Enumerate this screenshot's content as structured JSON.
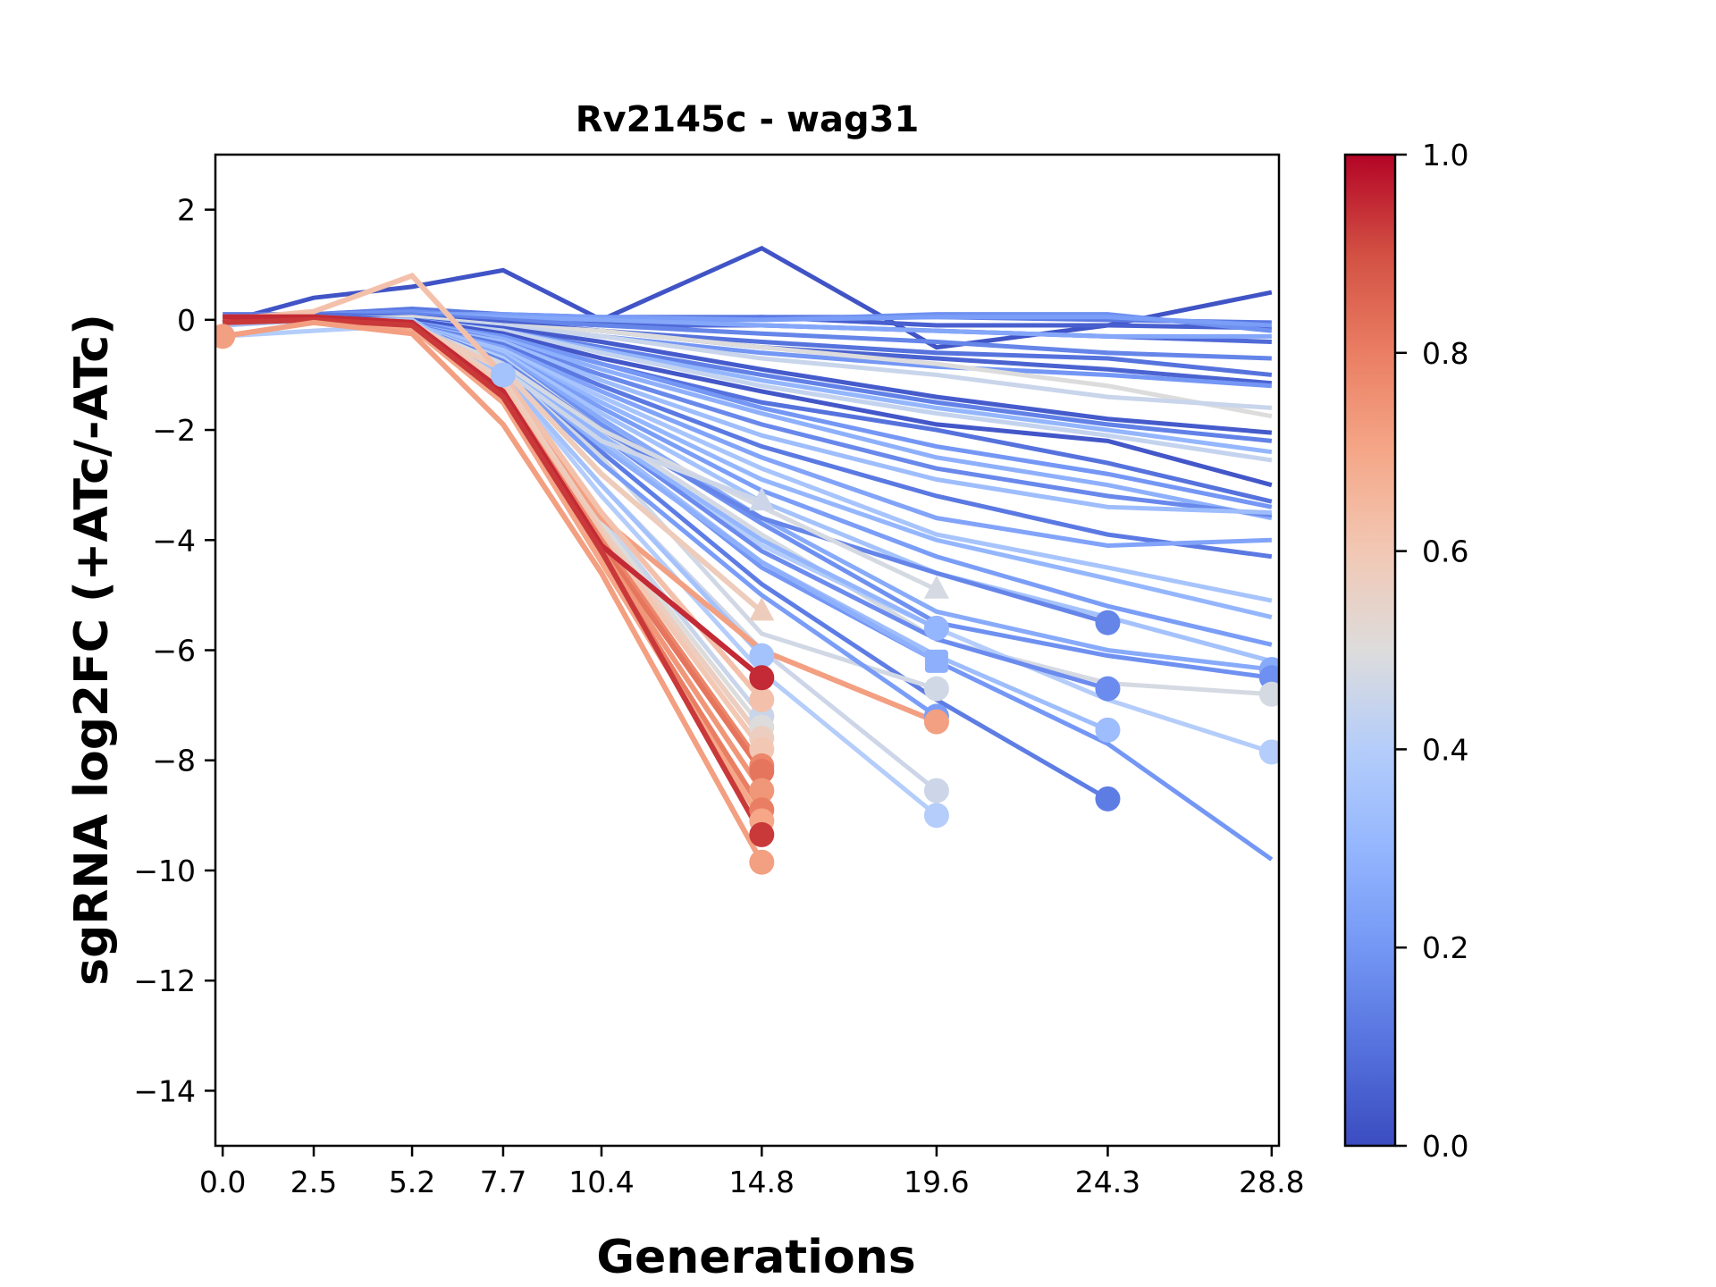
{
  "chart_data": {
    "type": "line",
    "title": "Rv2145c - wag31",
    "xlabel": "Generations",
    "ylabel": "sgRNA log2FC (+ATc/-ATc)",
    "x_ticks": [
      0.0,
      2.5,
      5.2,
      7.7,
      10.4,
      14.8,
      19.6,
      24.3,
      28.8
    ],
    "x_tick_labels": [
      "0.0",
      "2.5",
      "5.2",
      "7.7",
      "10.4",
      "14.8",
      "19.6",
      "24.3",
      "28.8"
    ],
    "y_ticks": [
      2,
      0,
      -2,
      -4,
      -6,
      -8,
      -10,
      -12,
      -14
    ],
    "y_tick_labels": [
      "2",
      "0",
      "−2",
      "−4",
      "−6",
      "−8",
      "−10",
      "−12",
      "−14"
    ],
    "xlim": [
      -0.2,
      29.0
    ],
    "ylim": [
      -15,
      3
    ],
    "grid": false,
    "colormap": "coolwarm",
    "colorbar": {
      "ticks": [
        0.0,
        0.2,
        0.4,
        0.6,
        0.8,
        1.0
      ],
      "tick_labels": [
        "0.0",
        "0.2",
        "0.4",
        "0.6",
        "0.8",
        "1.0"
      ],
      "range": [
        0,
        1
      ],
      "placement": "right"
    },
    "series_note": "Each series is one sgRNA; 'c' is the colormap value; 'y' aligned to x_ticks, null where the series ended; 'end_marker' is drawn at the last point",
    "series": [
      {
        "c": 0.02,
        "y": [
          -0.05,
          0.4,
          0.6,
          0.9,
          0.0,
          1.3,
          -0.5,
          -0.1,
          0.5
        ]
      },
      {
        "c": 0.05,
        "y": [
          0.05,
          0.05,
          0.1,
          0.05,
          -0.05,
          0.05,
          -0.1,
          -0.1,
          -0.15
        ]
      },
      {
        "c": 0.08,
        "y": [
          0.05,
          0.05,
          0.1,
          0.0,
          -0.1,
          -0.1,
          -0.2,
          -0.3,
          -0.4
        ]
      },
      {
        "c": 0.12,
        "y": [
          0.1,
          0.1,
          0.2,
          0.1,
          0.05,
          0.05,
          0.05,
          0.0,
          -0.05
        ]
      },
      {
        "c": 0.18,
        "y": [
          0.05,
          0.1,
          0.15,
          0.05,
          0.0,
          0.0,
          0.1,
          0.1,
          -0.2
        ]
      },
      {
        "c": 0.22,
        "y": [
          0.0,
          0.05,
          0.1,
          0.1,
          0.05,
          0.0,
          0.05,
          0.05,
          -0.1
        ]
      },
      {
        "c": 0.25,
        "y": [
          0.05,
          0.0,
          0.1,
          0.05,
          0.0,
          -0.1,
          -0.2,
          -0.3,
          -0.3
        ]
      },
      {
        "c": 0.15,
        "y": [
          0.0,
          0.05,
          0.1,
          0.0,
          -0.1,
          -0.25,
          -0.4,
          -0.6,
          -0.7
        ]
      },
      {
        "c": 0.1,
        "y": [
          0.05,
          0.1,
          0.05,
          -0.05,
          -0.2,
          -0.4,
          -0.6,
          -0.7,
          -1.0
        ]
      },
      {
        "c": 0.06,
        "y": [
          0.0,
          0.0,
          0.05,
          -0.05,
          -0.2,
          -0.5,
          -0.7,
          -0.9,
          -1.15
        ]
      },
      {
        "c": 0.2,
        "y": [
          0.0,
          0.0,
          0.05,
          -0.1,
          -0.3,
          -0.6,
          -0.85,
          -1.0,
          -1.2
        ]
      },
      {
        "c": 0.5,
        "y": [
          0.0,
          0.0,
          0.05,
          -0.1,
          -0.2,
          -0.5,
          -0.8,
          -1.2,
          -1.75
        ]
      },
      {
        "c": 0.45,
        "y": [
          0.0,
          0.0,
          0.0,
          -0.1,
          -0.3,
          -0.7,
          -1.0,
          -1.4,
          -1.6
        ]
      },
      {
        "c": 0.04,
        "y": [
          0.05,
          0.0,
          0.0,
          -0.15,
          -0.4,
          -0.9,
          -1.4,
          -1.8,
          -2.05
        ]
      },
      {
        "c": 0.14,
        "y": [
          0.0,
          0.0,
          0.0,
          -0.2,
          -0.5,
          -1.0,
          -1.5,
          -1.9,
          -2.2
        ]
      },
      {
        "c": 0.3,
        "y": [
          0.0,
          0.05,
          0.0,
          -0.2,
          -0.55,
          -1.1,
          -1.6,
          -2.0,
          -2.4
        ]
      },
      {
        "c": 0.44,
        "y": [
          0.0,
          0.0,
          -0.05,
          -0.2,
          -0.6,
          -1.2,
          -1.7,
          -2.1,
          -2.55
        ]
      },
      {
        "c": 0.03,
        "y": [
          0.0,
          0.05,
          0.0,
          -0.25,
          -0.7,
          -1.3,
          -1.9,
          -2.2,
          -3.0
        ]
      },
      {
        "c": 0.1,
        "y": [
          0.0,
          0.0,
          -0.05,
          -0.3,
          -0.8,
          -1.5,
          -2.0,
          -2.6,
          -3.3
        ]
      },
      {
        "c": 0.2,
        "y": [
          0.0,
          0.0,
          -0.05,
          -0.3,
          -0.8,
          -1.6,
          -2.3,
          -2.8,
          -3.4
        ]
      },
      {
        "c": 0.28,
        "y": [
          0.0,
          0.0,
          -0.05,
          -0.35,
          -0.9,
          -1.7,
          -2.5,
          -3.0,
          -3.6
        ]
      },
      {
        "c": 0.16,
        "y": [
          0.0,
          0.05,
          -0.05,
          -0.4,
          -1.0,
          -1.9,
          -2.7,
          -3.2,
          -3.55
        ]
      },
      {
        "c": 0.33,
        "y": [
          0.0,
          0.0,
          -0.1,
          -0.4,
          -1.1,
          -2.1,
          -2.9,
          -3.4,
          -3.5
        ]
      },
      {
        "c": 0.12,
        "y": [
          0.0,
          0.0,
          -0.1,
          -0.45,
          -1.2,
          -2.3,
          -3.2,
          -3.9,
          -4.3
        ]
      },
      {
        "c": 0.24,
        "y": [
          0.0,
          -0.05,
          -0.1,
          -0.5,
          -1.3,
          -2.5,
          -3.6,
          -4.1,
          -4.0
        ]
      },
      {
        "c": 0.36,
        "y": [
          0.0,
          0.0,
          -0.1,
          -0.55,
          -1.4,
          -2.7,
          -3.9,
          -4.5,
          -5.1
        ]
      },
      {
        "c": 0.3,
        "y": [
          0.0,
          0.0,
          -0.1,
          -0.6,
          -1.5,
          -2.9,
          -4.0,
          -4.7,
          -5.4
        ]
      },
      {
        "c": 0.22,
        "y": [
          0.0,
          0.0,
          -0.1,
          -0.6,
          -1.6,
          -3.1,
          -4.3,
          -5.2,
          -5.9
        ]
      },
      {
        "c": 0.35,
        "y": [
          0.0,
          0.0,
          -0.1,
          -0.6,
          -1.7,
          -3.3,
          -4.6,
          -5.4,
          -6.2
        ]
      },
      {
        "c": 0.26,
        "y": [
          -0.1,
          0.0,
          -0.1,
          -0.65,
          -1.8,
          -3.6,
          -5.3,
          -6.0,
          -6.35
        ],
        "end_marker": "circle"
      },
      {
        "c": 0.18,
        "y": [
          0.0,
          0.0,
          -0.1,
          -0.7,
          -1.9,
          -3.7,
          -5.5,
          -6.1,
          -6.5
        ],
        "end_marker": "circle"
      },
      {
        "c": 0.48,
        "y": [
          -0.1,
          0.0,
          -0.1,
          -0.7,
          -2.0,
          -3.9,
          -5.8,
          -6.6,
          -6.8
        ],
        "end_marker": "circle"
      },
      {
        "c": 0.4,
        "y": [
          -0.3,
          -0.2,
          -0.1,
          -0.7,
          -2.1,
          -4.1,
          -5.6,
          -6.9,
          -7.85
        ],
        "end_marker": "circle"
      },
      {
        "c": 0.2,
        "y": [
          0.0,
          0.0,
          -0.1,
          -0.8,
          -2.2,
          -4.5,
          -6.2,
          -7.7,
          -9.8
        ]
      },
      {
        "c": 0.15,
        "y": [
          0.0,
          0.0,
          -0.1,
          -0.75,
          -2.0,
          -3.6,
          -4.6,
          -5.5,
          null
        ],
        "end_marker": "circle"
      },
      {
        "c": 0.17,
        "y": [
          0.0,
          0.0,
          -0.1,
          -0.8,
          -2.1,
          -4.2,
          -5.8,
          -6.7,
          null
        ],
        "end_marker": "circle"
      },
      {
        "c": 0.33,
        "y": [
          0.0,
          0.0,
          -0.1,
          -0.85,
          -2.2,
          -4.4,
          -6.1,
          -7.45,
          null
        ],
        "end_marker": "circle"
      },
      {
        "c": 0.13,
        "y": [
          0.0,
          0.0,
          -0.1,
          -0.9,
          -2.4,
          -4.8,
          -6.9,
          -8.7,
          null
        ],
        "end_marker": "circle"
      },
      {
        "c": 0.3,
        "y": [
          0.0,
          0.0,
          -0.1,
          -0.8,
          -2.1,
          -4.0,
          -5.6,
          null,
          null
        ],
        "end_marker": "circle"
      },
      {
        "c": 0.28,
        "y": [
          0.0,
          0.0,
          -0.1,
          -0.85,
          -2.3,
          -4.4,
          -6.2,
          null,
          null
        ],
        "end_marker": "square"
      },
      {
        "c": 0.48,
        "y": [
          0.0,
          0.0,
          -0.1,
          -0.8,
          -2.0,
          -3.4,
          -4.9,
          null,
          null
        ],
        "end_marker": "triangle"
      },
      {
        "c": 0.47,
        "y": [
          0.0,
          0.0,
          -0.1,
          -0.9,
          -2.5,
          -5.7,
          -6.7,
          null,
          null
        ],
        "end_marker": "circle"
      },
      {
        "c": 0.22,
        "y": [
          0.0,
          0.0,
          -0.1,
          -0.9,
          -2.6,
          -5.0,
          -7.2,
          null,
          null
        ],
        "end_marker": "circle"
      },
      {
        "c": 0.72,
        "y": [
          0.0,
          0.0,
          -0.1,
          -1.1,
          -3.6,
          -6.0,
          -7.3,
          null,
          null
        ],
        "end_marker": "circle"
      },
      {
        "c": 0.46,
        "y": [
          0.0,
          0.0,
          -0.1,
          -1.0,
          -3.0,
          -6.0,
          -8.55,
          null,
          null
        ],
        "end_marker": "circle"
      },
      {
        "c": 0.4,
        "y": [
          0.0,
          0.0,
          -0.1,
          -1.0,
          -3.2,
          -6.4,
          -9.0,
          null,
          null
        ],
        "end_marker": "circle"
      },
      {
        "c": 0.46,
        "y": [
          0.0,
          0.0,
          -0.1,
          -0.9,
          -2.2,
          -3.3,
          null,
          null,
          null
        ],
        "end_marker": "triangle"
      },
      {
        "c": 0.58,
        "y": [
          0.0,
          0.0,
          -0.1,
          -0.9,
          -2.8,
          -5.3,
          null,
          null,
          null
        ],
        "end_marker": "triangle"
      },
      {
        "c": 0.35,
        "y": [
          0.0,
          0.0,
          -0.1,
          -1.0,
          -3.0,
          -6.1,
          null,
          null,
          null
        ],
        "end_marker": "circle"
      },
      {
        "c": 0.62,
        "y": [
          0.0,
          0.15,
          0.8,
          -1.0,
          -3.5,
          -6.9,
          null,
          null,
          null
        ],
        "end_marker": "circle"
      },
      {
        "c": 0.45,
        "y": [
          0.0,
          0.0,
          0.0,
          -1.0,
          -3.6,
          -7.2,
          null,
          null,
          null
        ],
        "end_marker": "circle"
      },
      {
        "c": 0.5,
        "y": [
          0.0,
          0.0,
          0.0,
          -1.1,
          -3.7,
          -7.4,
          null,
          null,
          null
        ],
        "end_marker": "circle"
      },
      {
        "c": 0.57,
        "y": [
          0.0,
          0.0,
          -0.05,
          -1.1,
          -3.8,
          -7.6,
          null,
          null,
          null
        ],
        "end_marker": "circle"
      },
      {
        "c": 0.6,
        "y": [
          0.0,
          0.0,
          -0.05,
          -1.2,
          -3.9,
          -7.8,
          null,
          null,
          null
        ],
        "end_marker": "circle"
      },
      {
        "c": 0.78,
        "y": [
          0.05,
          0.05,
          -0.05,
          -1.3,
          -4.0,
          -8.1,
          null,
          null,
          null
        ],
        "end_marker": "circle"
      },
      {
        "c": 0.82,
        "y": [
          0.05,
          0.05,
          -0.05,
          -1.35,
          -4.1,
          -8.2,
          null,
          null,
          null
        ],
        "end_marker": "circle"
      },
      {
        "c": 0.74,
        "y": [
          0.0,
          0.0,
          -0.1,
          -1.4,
          -4.2,
          -8.55,
          null,
          null,
          null
        ],
        "end_marker": "circle"
      },
      {
        "c": 0.8,
        "y": [
          0.0,
          0.05,
          -0.1,
          -1.4,
          -4.3,
          -8.9,
          null,
          null,
          null
        ],
        "end_marker": "circle"
      },
      {
        "c": 0.7,
        "y": [
          0.0,
          0.0,
          -0.15,
          -1.5,
          -4.4,
          -9.1,
          null,
          null,
          null
        ],
        "end_marker": "circle"
      },
      {
        "c": 0.95,
        "y": [
          0.05,
          0.05,
          -0.05,
          -1.3,
          -4.1,
          -6.5,
          null,
          null,
          null
        ],
        "end_marker": "circle"
      },
      {
        "c": 0.93,
        "y": [
          -0.05,
          0.0,
          -0.1,
          -1.4,
          -4.2,
          -9.35,
          null,
          null,
          null
        ],
        "end_marker": "circle"
      },
      {
        "c": 0.72,
        "y": [
          -0.3,
          -0.05,
          -0.25,
          -1.9,
          -4.6,
          -9.85,
          null,
          null,
          null
        ],
        "end_marker": "circle"
      },
      {
        "c": 0.35,
        "y": [
          -0.1,
          0.0,
          0.0,
          -1.0,
          null,
          null,
          null,
          null,
          null
        ],
        "end_marker": "circle"
      },
      {
        "c": 0.72,
        "y": [
          -0.3,
          null,
          null,
          null,
          null,
          null,
          null,
          null,
          null
        ],
        "end_marker": "circle"
      }
    ]
  }
}
